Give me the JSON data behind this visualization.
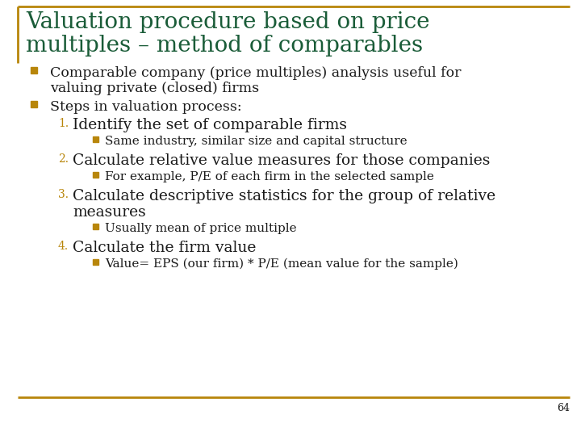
{
  "title_line1": "Valuation procedure based on price",
  "title_line2": "multiples – method of comparables",
  "title_color": "#1a5c38",
  "background_color": "#ffffff",
  "border_color": "#b8860b",
  "bullet_color": "#b8860b",
  "text_color": "#1a1a1a",
  "number_color": "#b8860b",
  "page_number": "64",
  "bullet1_line1": "Comparable company (price multiples) analysis useful for",
  "bullet1_line2": "valuing private (closed) firms",
  "bullet2": "Steps in valuation process:",
  "item1": "Identify the set of comparable firms",
  "sub1": "Same industry, similar size and capital structure",
  "item2": "Calculate relative value measures for those companies",
  "sub2": "For example, P/E of each firm in the selected sample",
  "item3_line1": "Calculate descriptive statistics for the group of relative",
  "item3_line2": "measures",
  "sub3": "Usually mean of price multiple",
  "item4": "Calculate the firm value",
  "sub4": "Value= EPS (our firm) * P/E (mean value for the sample)"
}
